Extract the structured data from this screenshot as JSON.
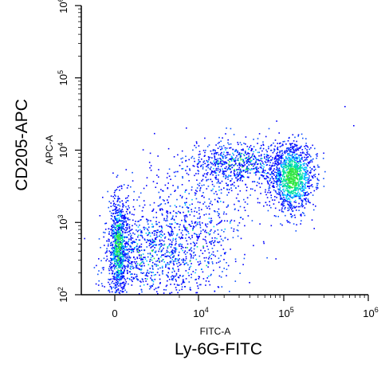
{
  "chart_data": {
    "type": "scatter",
    "style": "flow-cytometry density dot plot (pseudocolor)",
    "x_axis": {
      "label": "FITC-A",
      "scale": "biexponential",
      "ticks": [
        {
          "value": 0,
          "text": "0",
          "sup": ""
        },
        {
          "value": 10000,
          "text": "10",
          "sup": "4"
        },
        {
          "value": 100000,
          "text": "10",
          "sup": "5"
        },
        {
          "value": 1000000,
          "text": "10",
          "sup": "6"
        }
      ]
    },
    "y_axis": {
      "label": "APC-A",
      "scale": "log",
      "ylim": [
        100,
        1000000
      ],
      "ticks": [
        {
          "value": 100,
          "text": "10",
          "sup": "2"
        },
        {
          "value": 1000,
          "text": "10",
          "sup": "3"
        },
        {
          "value": 10000,
          "text": "10",
          "sup": "4"
        },
        {
          "value": 100000,
          "text": "10",
          "sup": "5"
        },
        {
          "value": 1000000,
          "text": "10",
          "sup": "6"
        }
      ]
    },
    "outer_xlabel": "Ly-6G-FITC",
    "outer_ylabel": "CD205-APC",
    "populations": [
      {
        "name": "",
        "x_center": 0,
        "y_center": 700,
        "density": "high"
      },
      {
        "name": "",
        "x_center": 5000,
        "y_center": 800,
        "density": "medium"
      },
      {
        "name": "",
        "x_center": 40000,
        "y_center": 7000,
        "density": "medium"
      },
      {
        "name": "",
        "x_center": 130000,
        "y_center": 4000,
        "density": "very high"
      }
    ],
    "density_colors": [
      "#0000ff",
      "#0a50ff",
      "#00c8ff",
      "#00e2a0",
      "#30e840"
    ],
    "grid": false,
    "legend": "none"
  }
}
